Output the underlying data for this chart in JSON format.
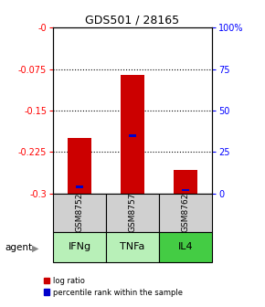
{
  "title": "GDS501 / 28165",
  "samples": [
    "GSM8752",
    "GSM8757",
    "GSM8762"
  ],
  "agents": [
    "IFNg",
    "TNFa",
    "IL4"
  ],
  "log_ratios": [
    -0.2,
    -0.085,
    -0.258
  ],
  "percentile_ranks": [
    4,
    35,
    2
  ],
  "ylim_left": [
    -0.3,
    0.0
  ],
  "ylim_right": [
    0,
    100
  ],
  "yticks_left": [
    -0.3,
    -0.225,
    -0.15,
    -0.075,
    0.0
  ],
  "yticks_right": [
    0,
    25,
    50,
    75,
    100
  ],
  "ytick_labels_left": [
    "-0.3",
    "-0.225",
    "-0.15",
    "-0.075",
    "-0"
  ],
  "ytick_labels_right": [
    "0",
    "25",
    "50",
    "75",
    "100%"
  ],
  "bar_color": "#cc0000",
  "percentile_color": "#0000cc",
  "sample_box_color": "#d0d0d0",
  "agent_colors": [
    "#b8f0b8",
    "#b8f0b8",
    "#44cc44"
  ],
  "bar_width": 0.45,
  "percentile_bar_width": 0.15
}
